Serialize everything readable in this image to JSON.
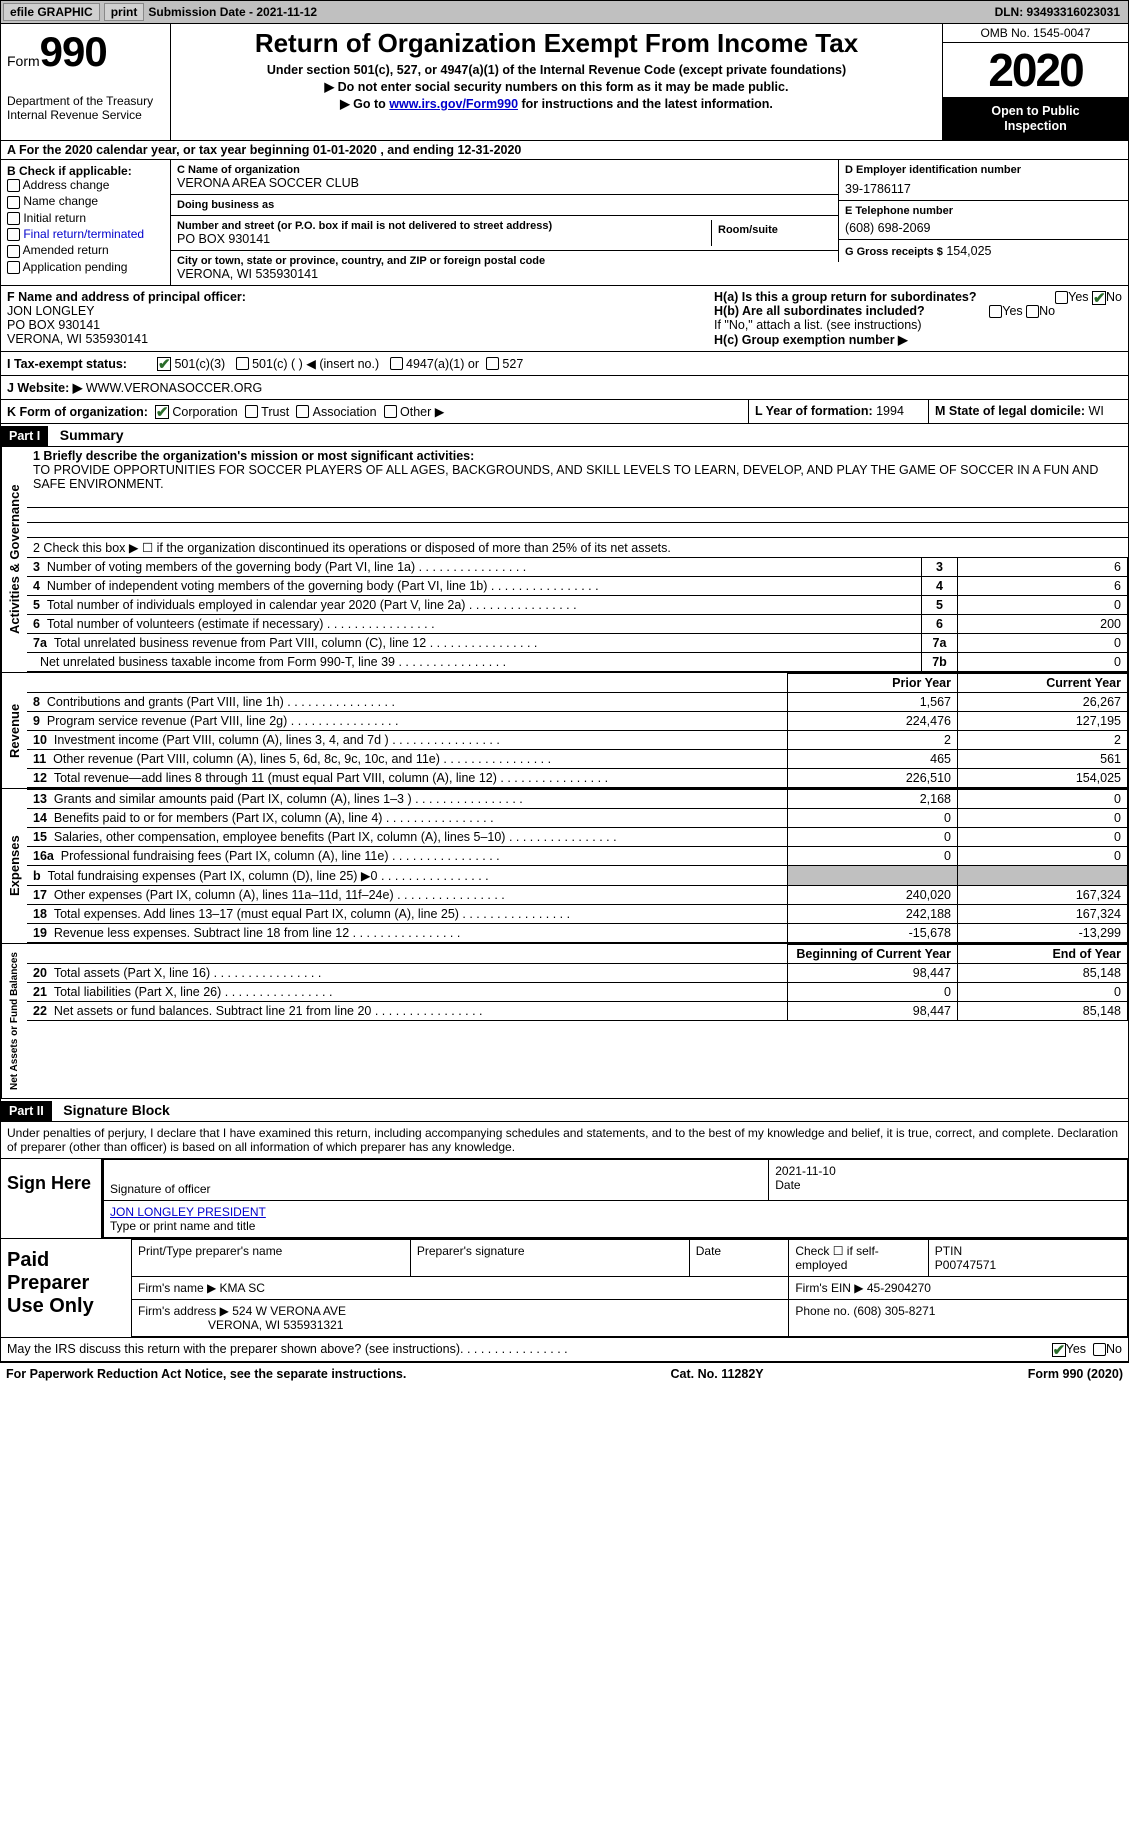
{
  "colors": {
    "black": "#000000",
    "white": "#ffffff",
    "grey_bar": "#c0c0c0",
    "grey_btn": "#d0d0d0",
    "link": "#0000cc",
    "check_green": "#2a6b2a"
  },
  "typography": {
    "base_font": "Arial, Helvetica, sans-serif",
    "base_size_pt": 9.5,
    "form_number_size_pt": 32,
    "year_size_pt": 35,
    "title_size_pt": 20
  },
  "topbar": {
    "efile_label": "efile GRAPHIC",
    "print_btn": "print",
    "submission_label": "Submission Date - 2021-11-12",
    "dln": "DLN: 93493316023031"
  },
  "header": {
    "form_word": "Form",
    "form_number": "990",
    "dept1": "Department of the Treasury",
    "dept2": "Internal Revenue Service",
    "title": "Return of Organization Exempt From Income Tax",
    "subtitle": "Under section 501(c), 527, or 4947(a)(1) of the Internal Revenue Code (except private foundations)",
    "arrow1": "▶ Do not enter social security numbers on this form as it may be made public.",
    "arrow2_pre": "▶ Go to ",
    "arrow2_link": "www.irs.gov/Form990",
    "arrow2_post": " for instructions and the latest information.",
    "omb": "OMB No. 1545-0047",
    "year": "2020",
    "open1": "Open to Public",
    "open2": "Inspection"
  },
  "period": {
    "label_a": "A For the 2020 calendar year, or tax year beginning ",
    "begin": "01-01-2020",
    "mid": " , and ending ",
    "end": "12-31-2020"
  },
  "boxB": {
    "title": "B Check if applicable:",
    "items": [
      "Address change",
      "Name change",
      "Initial return",
      "Final return/terminated",
      "Amended return",
      "Application pending"
    ]
  },
  "boxC": {
    "name_label": "C Name of organization",
    "name": "VERONA AREA SOCCER CLUB",
    "dba_label": "Doing business as",
    "dba": "",
    "street_label": "Number and street (or P.O. box if mail is not delivered to street address)",
    "room_label": "Room/suite",
    "street": "PO BOX 930141",
    "city_label": "City or town, state or province, country, and ZIP or foreign postal code",
    "city": "VERONA, WI  535930141"
  },
  "boxD": {
    "label": "D Employer identification number",
    "value": "39-1786117"
  },
  "boxE": {
    "label": "E Telephone number",
    "value": "(608) 698-2069"
  },
  "boxG": {
    "label": "G Gross receipts $",
    "value": "154,025"
  },
  "boxF": {
    "label": "F Name and address of principal officer:",
    "name": "JON LONGLEY",
    "street": "PO BOX 930141",
    "city": "VERONA, WI  535930141"
  },
  "boxH": {
    "a_label": "H(a)  Is this a group return for subordinates?",
    "a_yes": "Yes",
    "a_no": "No",
    "b_label": "H(b)  Are all subordinates included?",
    "b_yes": "Yes",
    "b_no": "No",
    "b_note": "If \"No,\" attach a list. (see instructions)",
    "c_label": "H(c)  Group exemption number ▶"
  },
  "boxI": {
    "label": "I   Tax-exempt status:",
    "opt1": "501(c)(3)",
    "opt2": "501(c) (   ) ◀ (insert no.)",
    "opt3": "4947(a)(1) or",
    "opt4": "527"
  },
  "boxJ": {
    "label": "J   Website: ▶",
    "value": "WWW.VERONASOCCER.ORG"
  },
  "boxK": {
    "label": "K Form of organization:",
    "opts": [
      "Corporation",
      "Trust",
      "Association",
      "Other ▶"
    ],
    "checked": 0
  },
  "boxL": {
    "label": "L Year of formation:",
    "value": "1994"
  },
  "boxM": {
    "label": "M State of legal domicile:",
    "value": "WI"
  },
  "part1": {
    "tag": "Part I",
    "title": "Summary",
    "line1_label": "1  Briefly describe the organization's mission or most significant activities:",
    "mission": "TO PROVIDE OPPORTUNITIES FOR SOCCER PLAYERS OF ALL AGES, BACKGROUNDS, AND SKILL LEVELS TO LEARN, DEVELOP, AND PLAY THE GAME OF SOCCER IN A FUN AND SAFE ENVIRONMENT.",
    "line2": "2   Check this box ▶ ☐  if the organization discontinued its operations or disposed of more than 25% of its net assets.",
    "sectA_label": "Activities & Governance",
    "sectA_rows": [
      {
        "n": "3",
        "txt": "Number of voting members of the governing body (Part VI, line 1a)",
        "box": "3",
        "val": "6"
      },
      {
        "n": "4",
        "txt": "Number of independent voting members of the governing body (Part VI, line 1b)",
        "box": "4",
        "val": "6"
      },
      {
        "n": "5",
        "txt": "Total number of individuals employed in calendar year 2020 (Part V, line 2a)",
        "box": "5",
        "val": "0"
      },
      {
        "n": "6",
        "txt": "Total number of volunteers (estimate if necessary)",
        "box": "6",
        "val": "200"
      },
      {
        "n": "7a",
        "txt": "Total unrelated business revenue from Part VIII, column (C), line 12",
        "box": "7a",
        "val": "0"
      },
      {
        "n": "",
        "txt": "Net unrelated business taxable income from Form 990-T, line 39",
        "box": "7b",
        "val": "0"
      }
    ],
    "prior_hdr": "Prior Year",
    "current_hdr": "Current Year",
    "sectR_label": "Revenue",
    "sectR_rows": [
      {
        "n": "8",
        "txt": "Contributions and grants (Part VIII, line 1h)",
        "p": "1,567",
        "c": "26,267"
      },
      {
        "n": "9",
        "txt": "Program service revenue (Part VIII, line 2g)",
        "p": "224,476",
        "c": "127,195"
      },
      {
        "n": "10",
        "txt": "Investment income (Part VIII, column (A), lines 3, 4, and 7d )",
        "p": "2",
        "c": "2"
      },
      {
        "n": "11",
        "txt": "Other revenue (Part VIII, column (A), lines 5, 6d, 8c, 9c, 10c, and 11e)",
        "p": "465",
        "c": "561"
      },
      {
        "n": "12",
        "txt": "Total revenue—add lines 8 through 11 (must equal Part VIII, column (A), line 12)",
        "p": "226,510",
        "c": "154,025"
      }
    ],
    "sectE_label": "Expenses",
    "sectE_rows": [
      {
        "n": "13",
        "txt": "Grants and similar amounts paid (Part IX, column (A), lines 1–3 )",
        "p": "2,168",
        "c": "0"
      },
      {
        "n": "14",
        "txt": "Benefits paid to or for members (Part IX, column (A), line 4)",
        "p": "0",
        "c": "0"
      },
      {
        "n": "15",
        "txt": "Salaries, other compensation, employee benefits (Part IX, column (A), lines 5–10)",
        "p": "0",
        "c": "0"
      },
      {
        "n": "16a",
        "txt": "Professional fundraising fees (Part IX, column (A), line 11e)",
        "p": "0",
        "c": "0"
      },
      {
        "n": "b",
        "txt": "Total fundraising expenses (Part IX, column (D), line 25) ▶0",
        "p": "",
        "c": "",
        "grey": true
      },
      {
        "n": "17",
        "txt": "Other expenses (Part IX, column (A), lines 11a–11d, 11f–24e)",
        "p": "240,020",
        "c": "167,324"
      },
      {
        "n": "18",
        "txt": "Total expenses. Add lines 13–17 (must equal Part IX, column (A), line 25)",
        "p": "242,188",
        "c": "167,324"
      },
      {
        "n": "19",
        "txt": "Revenue less expenses. Subtract line 18 from line 12",
        "p": "-15,678",
        "c": "-13,299"
      }
    ],
    "beg_hdr": "Beginning of Current Year",
    "end_hdr": "End of Year",
    "sectN_label": "Net Assets or Fund Balances",
    "sectN_rows": [
      {
        "n": "20",
        "txt": "Total assets (Part X, line 16)",
        "p": "98,447",
        "c": "85,148"
      },
      {
        "n": "21",
        "txt": "Total liabilities (Part X, line 26)",
        "p": "0",
        "c": "0"
      },
      {
        "n": "22",
        "txt": "Net assets or fund balances. Subtract line 21 from line 20",
        "p": "98,447",
        "c": "85,148"
      }
    ]
  },
  "part2": {
    "tag": "Part II",
    "title": "Signature Block",
    "decl": "Under penalties of perjury, I declare that I have examined this return, including accompanying schedules and statements, and to the best of my knowledge and belief, it is true, correct, and complete. Declaration of preparer (other than officer) is based on all information of which preparer has any knowledge.",
    "sign_here": "Sign Here",
    "sig_officer": "Signature of officer",
    "sig_date_label": "Date",
    "sig_date": "2021-11-10",
    "sig_name": "JON LONGLEY PRESIDENT",
    "sig_name_label": "Type or print name and title",
    "paid_label": "Paid Preparer Use Only",
    "prep_cols": [
      "Print/Type preparer's name",
      "Preparer's signature",
      "Date"
    ],
    "prep_check": "Check ☐ if self-employed",
    "ptin_label": "PTIN",
    "ptin": "P00747571",
    "firm_name_label": "Firm's name    ▶",
    "firm_name": "KMA SC",
    "firm_ein_label": "Firm's EIN ▶",
    "firm_ein": "45-2904270",
    "firm_addr_label": "Firm's address ▶",
    "firm_addr1": "524 W VERONA AVE",
    "firm_addr2": "VERONA, WI  535931321",
    "firm_phone_label": "Phone no.",
    "firm_phone": "(608) 305-8271",
    "discuss": "May the IRS discuss this return with the preparer shown above? (see instructions)",
    "discuss_yes": "Yes",
    "discuss_no": "No"
  },
  "footer": {
    "pra": "For Paperwork Reduction Act Notice, see the separate instructions.",
    "cat": "Cat. No. 11282Y",
    "form": "Form 990 (2020)"
  }
}
